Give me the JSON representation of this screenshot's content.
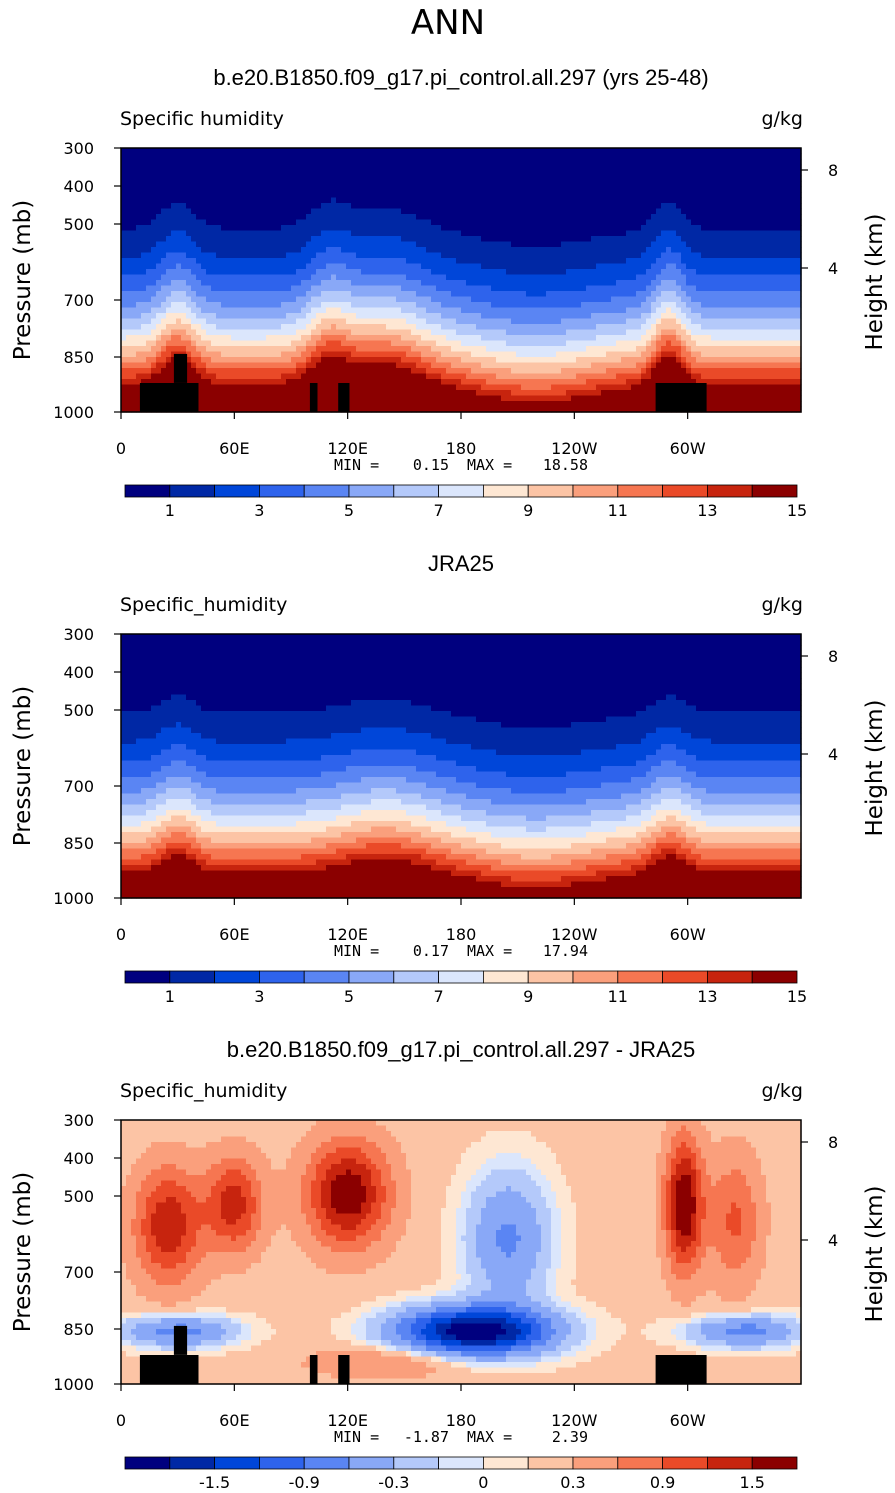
{
  "title": "ANN",
  "colors": {
    "sequential": [
      "#00007f",
      "#0028a5",
      "#0046d9",
      "#2e63ec",
      "#5a85f3",
      "#89a8f7",
      "#b4c9fa",
      "#dbe6fc",
      "#fee7d3",
      "#fcc4a5",
      "#fa9f7c",
      "#f67651",
      "#ea4a28",
      "#c7240e",
      "#8b0000"
    ],
    "diverging": [
      "#00007f",
      "#0028a5",
      "#0046d9",
      "#2e63ec",
      "#5a85f3",
      "#89a8f7",
      "#b4c9fa",
      "#dbe6fc",
      "#fee7d3",
      "#fcc4a5",
      "#fa9f7c",
      "#f67651",
      "#ea4a28",
      "#c7240e",
      "#8b0000"
    ],
    "land_mask": "#000000"
  },
  "chart_data": [
    {
      "type": "heatmap",
      "title": "b.e20.B1850.f09_g17.pi_control.all.297 (yrs 25-48)",
      "variable_label": "Specific humidity",
      "units_label": "g/kg",
      "ylabel": "Pressure (mb)",
      "y2label": "Height (km)",
      "xticks": [
        "0",
        "60E",
        "120E",
        "180",
        "120W",
        "60W"
      ],
      "xlim": [
        0,
        360
      ],
      "yticks": [
        "300",
        "400",
        "500",
        "700",
        "850",
        "1000"
      ],
      "ylim": [
        1000,
        300
      ],
      "y2ticks": [
        "8",
        "4"
      ],
      "stats_min_label": "MIN =",
      "stats_min": "0.15",
      "stats_max_label": "MAX =",
      "stats_max": "18.58",
      "colorbar_ticks": [
        "1",
        "3",
        "5",
        "7",
        "9",
        "11",
        "13",
        "15"
      ],
      "colorbar_levels": [
        1,
        2,
        3,
        4,
        5,
        6,
        7,
        8,
        9,
        10,
        11,
        12,
        13,
        14,
        15
      ],
      "field": "model"
    },
    {
      "type": "heatmap",
      "title": "JRA25",
      "variable_label": "Specific_humidity",
      "units_label": "g/kg",
      "ylabel": "Pressure (mb)",
      "y2label": "Height (km)",
      "xticks": [
        "0",
        "60E",
        "120E",
        "180",
        "120W",
        "60W"
      ],
      "xlim": [
        0,
        360
      ],
      "yticks": [
        "300",
        "400",
        "500",
        "700",
        "850",
        "1000"
      ],
      "ylim": [
        1000,
        300
      ],
      "y2ticks": [
        "8",
        "4"
      ],
      "stats_min_label": "MIN =",
      "stats_min": "0.17",
      "stats_max_label": "MAX =",
      "stats_max": "17.94",
      "colorbar_ticks": [
        "1",
        "3",
        "5",
        "7",
        "9",
        "11",
        "13",
        "15"
      ],
      "colorbar_levels": [
        1,
        2,
        3,
        4,
        5,
        6,
        7,
        8,
        9,
        10,
        11,
        12,
        13,
        14,
        15
      ],
      "field": "obs"
    },
    {
      "type": "heatmap",
      "title": "b.e20.B1850.f09_g17.pi_control.all.297 - JRA25",
      "variable_label": "Specific_humidity",
      "units_label": "g/kg",
      "ylabel": "Pressure (mb)",
      "y2label": "Height (km)",
      "xticks": [
        "0",
        "60E",
        "120E",
        "180",
        "120W",
        "60W"
      ],
      "xlim": [
        0,
        360
      ],
      "yticks": [
        "300",
        "400",
        "500",
        "700",
        "850",
        "1000"
      ],
      "ylim": [
        1000,
        300
      ],
      "y2ticks": [
        "8",
        "4"
      ],
      "stats_min_label": "MIN =",
      "stats_min": "-1.87",
      "stats_max_label": "MAX =",
      "stats_max": "2.39",
      "colorbar_ticks": [
        "-1.5",
        "-0.9",
        "-0.3",
        "0",
        "0.3",
        "0.9",
        "1.5"
      ],
      "colorbar_levels": [
        -1.8,
        -1.5,
        -1.2,
        -0.9,
        -0.6,
        -0.3,
        -0.1,
        0,
        0.1,
        0.3,
        0.6,
        0.9,
        1.2,
        1.5,
        1.8
      ],
      "field": "diff"
    }
  ]
}
